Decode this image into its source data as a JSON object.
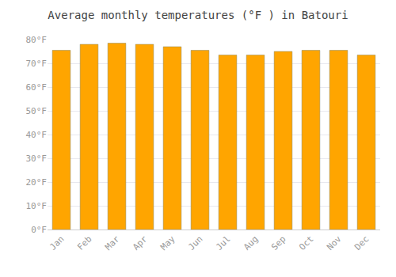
{
  "chart_data": {
    "type": "bar",
    "title": "Average monthly temperatures (°F ) in Batouri",
    "categories": [
      "Jan",
      "Feb",
      "Mar",
      "Apr",
      "May",
      "Jun",
      "Jul",
      "Aug",
      "Sep",
      "Oct",
      "Nov",
      "Dec"
    ],
    "values": [
      75.5,
      78.0,
      78.5,
      78.0,
      77.0,
      75.5,
      73.5,
      73.5,
      75.0,
      75.5,
      75.5,
      73.5
    ],
    "color": "#FFA500",
    "ylim": [
      0,
      80
    ],
    "yticks": [
      {
        "value": 0,
        "label": "0°F"
      },
      {
        "value": 10,
        "label": "10°F"
      },
      {
        "value": 20,
        "label": "20°F"
      },
      {
        "value": 30,
        "label": "30°F"
      },
      {
        "value": 40,
        "label": "40°F"
      },
      {
        "value": 50,
        "label": "50°F"
      },
      {
        "value": 60,
        "label": "60°F"
      },
      {
        "value": 70,
        "label": "70°F"
      },
      {
        "value": 80,
        "label": "80°F"
      }
    ],
    "grid": true
  }
}
